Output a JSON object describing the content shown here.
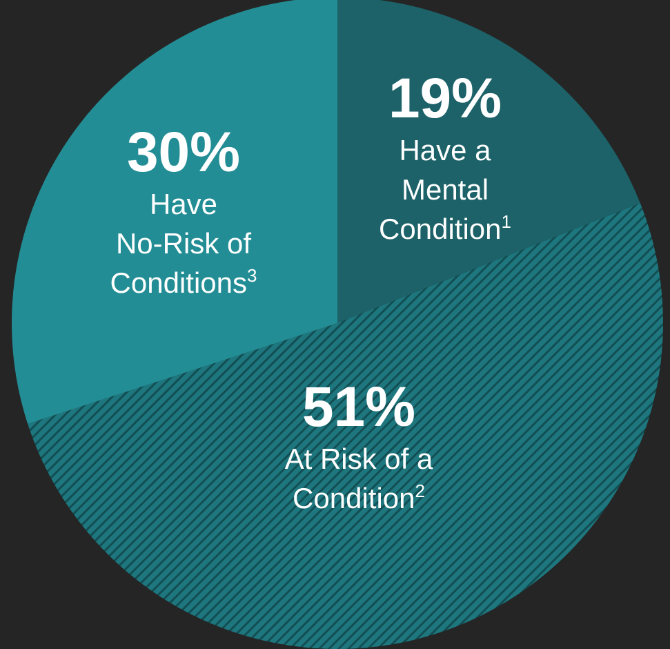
{
  "chart_data": {
    "type": "pie",
    "slices": [
      {
        "value": 19,
        "pct_label": "19%",
        "lines": [
          "Have a",
          "Mental",
          "Condition"
        ],
        "footnote": "1",
        "color": "#1c6268",
        "pattern": "solid"
      },
      {
        "value": 51,
        "pct_label": "51%",
        "lines": [
          "At Risk of a",
          "Condition"
        ],
        "footnote": "2",
        "color": "#1e777e",
        "pattern": "diagonal-stripes"
      },
      {
        "value": 30,
        "pct_label": "30%",
        "lines": [
          "Have",
          "No-Risk of",
          "Conditions"
        ],
        "footnote": "3",
        "color": "#238d95",
        "pattern": "solid"
      }
    ],
    "start_angle": "12 o'clock",
    "direction": "clockwise",
    "legend": "none",
    "background": "#252525"
  }
}
